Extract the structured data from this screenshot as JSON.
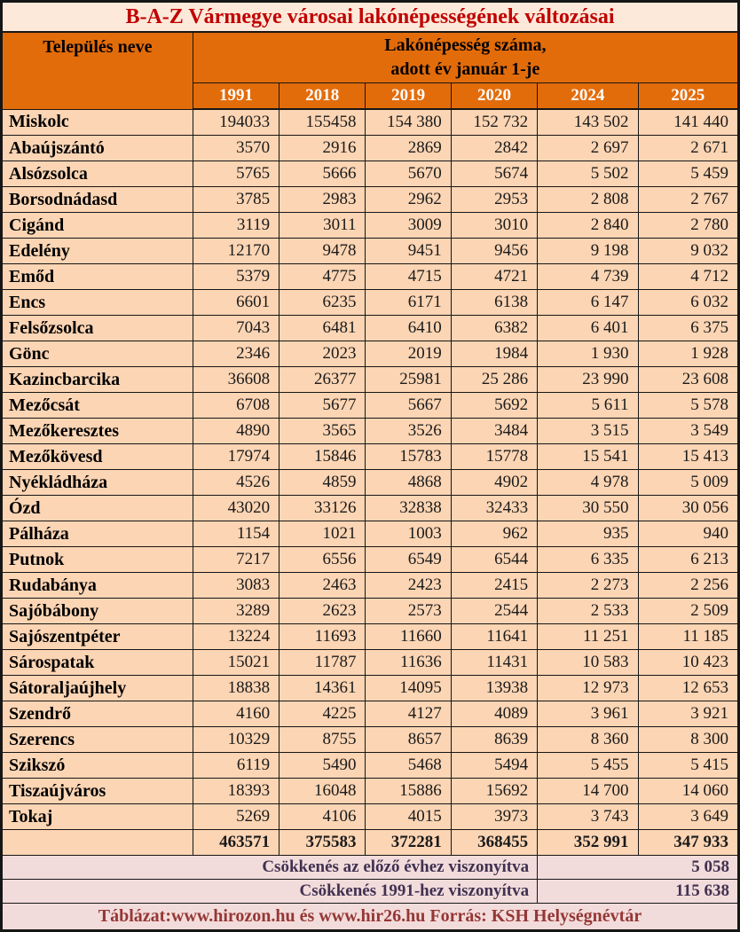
{
  "colors": {
    "header_orange": "#e36c0a",
    "row_peach": "#fcd5b4",
    "title_bg": "#fde9d9",
    "summary_pink": "#f2dcdb",
    "title_red": "#c00000",
    "accent_brick_red": "#953735",
    "summary_navy": "#403152",
    "grid_black": "#161616"
  },
  "chart_data": {
    "type": "table",
    "title": "B-A-Z Vármegye városai lakónépességének változásai",
    "header": {
      "settlement": "Település neve",
      "line1": "Lakónépesség száma,",
      "line2": "adott év január 1-je"
    },
    "years": [
      "1991",
      "2018",
      "2019",
      "2020",
      "2024",
      "2025"
    ],
    "rows": [
      {
        "name": "Miskolc",
        "name_red": false,
        "values": [
          "194033",
          "155458",
          "154 380",
          "152 732",
          "143 502",
          "141 440"
        ],
        "red_value_indexes": []
      },
      {
        "name": "Abaújszántó",
        "name_red": true,
        "values": [
          "3570",
          "2916",
          "2869",
          "2842",
          "2 697",
          "2 671"
        ],
        "red_value_indexes": []
      },
      {
        "name": "Alsózsolca",
        "name_red": true,
        "values": [
          "5765",
          "5666",
          "5670",
          "5674",
          "5 502",
          "5 459"
        ],
        "red_value_indexes": []
      },
      {
        "name": "Borsodnádasd",
        "name_red": false,
        "values": [
          "3785",
          "2983",
          "2962",
          "2953",
          "2 808",
          "2 767"
        ],
        "red_value_indexes": []
      },
      {
        "name": "Cigánd",
        "name_red": true,
        "values": [
          "3119",
          "3011",
          "3009",
          "3010",
          "2 840",
          "2 780"
        ],
        "red_value_indexes": []
      },
      {
        "name": "Edelény",
        "name_red": false,
        "values": [
          "12170",
          "9478",
          "9451",
          "9456",
          "9 198",
          "9 032"
        ],
        "red_value_indexes": []
      },
      {
        "name": "Emőd",
        "name_red": false,
        "values": [
          "5379",
          "4775",
          "4715",
          "4721",
          "4 739",
          "4 712"
        ],
        "red_value_indexes": []
      },
      {
        "name": "Encs",
        "name_red": true,
        "values": [
          "6601",
          "6235",
          "6171",
          "6138",
          "6 147",
          "6 032"
        ],
        "red_value_indexes": []
      },
      {
        "name": "Felsőzsolca",
        "name_red": false,
        "values": [
          "7043",
          "6481",
          "6410",
          "6382",
          "6 401",
          "6 375"
        ],
        "red_value_indexes": []
      },
      {
        "name": "Gönc",
        "name_red": true,
        "values": [
          "2346",
          "2023",
          "2019",
          "1984",
          "1 930",
          "1 928"
        ],
        "red_value_indexes": []
      },
      {
        "name": "Kazincbarcika",
        "name_red": false,
        "values": [
          "36608",
          "26377",
          "25981",
          "25 286",
          "23 990",
          "23 608"
        ],
        "red_value_indexes": []
      },
      {
        "name": "Mezőcsát",
        "name_red": false,
        "values": [
          "6708",
          "5677",
          "5667",
          "5692",
          "5 611",
          "5 578"
        ],
        "red_value_indexes": []
      },
      {
        "name": "Mezőkeresztes",
        "name_red": false,
        "values": [
          "4890",
          "3565",
          "3526",
          "3484",
          "3 515",
          "3 549"
        ],
        "red_value_indexes": [
          4,
          5
        ]
      },
      {
        "name": "Mezőkövesd",
        "name_red": false,
        "values": [
          "17974",
          "15846",
          "15783",
          "15778",
          "15 541",
          "15 413"
        ],
        "red_value_indexes": []
      },
      {
        "name": "Nyékládháza",
        "name_red": false,
        "values": [
          "4526",
          "4859",
          "4868",
          "4902",
          "4 978",
          "5 009"
        ],
        "red_value_indexes": [
          4,
          5
        ]
      },
      {
        "name": "Ózd",
        "name_red": false,
        "values": [
          "43020",
          "33126",
          "32838",
          "32433",
          "30 550",
          "30 056"
        ],
        "red_value_indexes": []
      },
      {
        "name": "Pálháza",
        "name_red": false,
        "values": [
          "1154",
          "1021",
          "1003",
          "962",
          "935",
          "940"
        ],
        "red_value_indexes": [
          4,
          5
        ]
      },
      {
        "name": "Putnok",
        "name_red": true,
        "values": [
          "7217",
          "6556",
          "6549",
          "6544",
          "6 335",
          "6 213"
        ],
        "red_value_indexes": []
      },
      {
        "name": "Rudabánya",
        "name_red": true,
        "values": [
          "3083",
          "2463",
          "2423",
          "2415",
          "2 273",
          "2 256"
        ],
        "red_value_indexes": []
      },
      {
        "name": "Sajóbábony",
        "name_red": false,
        "values": [
          "3289",
          "2623",
          "2573",
          "2544",
          "2 533",
          "2 509"
        ],
        "red_value_indexes": []
      },
      {
        "name": "Sajószentpéter",
        "name_red": false,
        "values": [
          "13224",
          "11693",
          "11660",
          "11641",
          "11 251",
          "11 185"
        ],
        "red_value_indexes": []
      },
      {
        "name": "Sárospatak",
        "name_red": false,
        "values": [
          "15021",
          "11787",
          "11636",
          "11431",
          "10 583",
          "10 423"
        ],
        "red_value_indexes": []
      },
      {
        "name": "Sátoraljaújhely",
        "name_red": false,
        "values": [
          "18838",
          "14361",
          "14095",
          "13938",
          "12 973",
          "12 653"
        ],
        "red_value_indexes": []
      },
      {
        "name": "Szendrő",
        "name_red": true,
        "values": [
          "4160",
          "4225",
          "4127",
          "4089",
          "3 961",
          "3 921"
        ],
        "red_value_indexes": []
      },
      {
        "name": "Szerencs",
        "name_red": false,
        "values": [
          "10329",
          "8755",
          "8657",
          "8639",
          "8 360",
          "8 300"
        ],
        "red_value_indexes": []
      },
      {
        "name": "Szikszó",
        "name_red": false,
        "values": [
          "6119",
          "5490",
          "5468",
          "5494",
          "5 455",
          "5 415"
        ],
        "red_value_indexes": []
      },
      {
        "name": "Tiszaújváros",
        "name_red": false,
        "values": [
          "18393",
          "16048",
          "15886",
          "15692",
          "14 700",
          "14 060"
        ],
        "red_value_indexes": []
      },
      {
        "name": "Tokaj",
        "name_red": false,
        "values": [
          "5269",
          "4106",
          "4015",
          "3973",
          "3 743",
          "3 649"
        ],
        "red_value_indexes": []
      }
    ],
    "totals": [
      "463571",
      "375583",
      "372281",
      "368455",
      "352 991",
      "347 933"
    ],
    "summary": [
      {
        "label": "Csökkenés az előző évhez viszonyítva",
        "value": "5 058"
      },
      {
        "label": "Csökkenés 1991-hez viszonyítva",
        "value": "115 638"
      }
    ],
    "source_note": "Táblázat:www.hirozon.hu és www.hir26.hu Forrás: KSH Helységnévtár"
  }
}
